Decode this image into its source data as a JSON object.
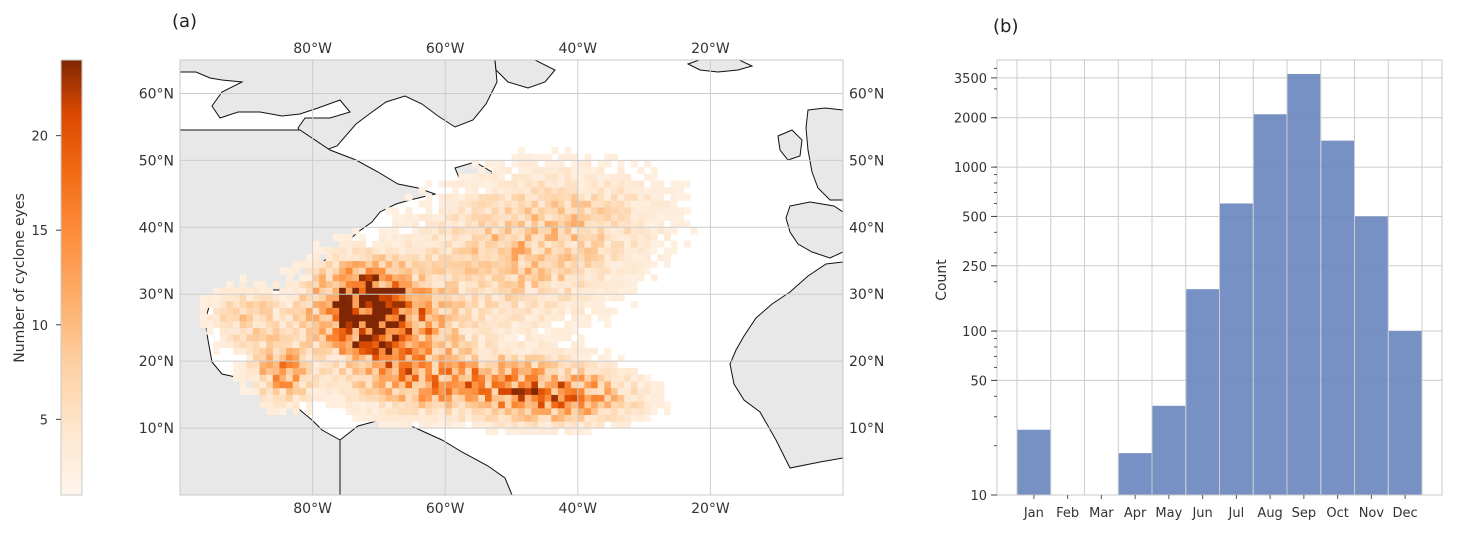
{
  "panels": {
    "a": {
      "label": "(a)"
    },
    "b": {
      "label": "(b)"
    }
  },
  "colorbar": {
    "label": "Number of cyclone eyes",
    "ticks": [
      5,
      10,
      15,
      20
    ],
    "tick_labels": [
      "5",
      "10",
      "15",
      "20"
    ],
    "range": [
      1,
      24
    ],
    "cmap": "Oranges",
    "colors": {
      "low": "#fff5eb",
      "mid": "#fd8d3c",
      "high": "#7f2704"
    }
  },
  "chart_data": [
    {
      "type": "heatmap",
      "panel": "(a)",
      "projection": "PlateCarree",
      "extent": {
        "lon": [
          -100,
          0
        ],
        "lat": [
          0,
          65
        ]
      },
      "bin_size_deg": 1,
      "lon_ticks": [
        -80,
        -60,
        -40,
        -20
      ],
      "lon_tick_labels": [
        "80°W",
        "60°W",
        "40°W",
        "20°W"
      ],
      "lat_ticks": [
        10,
        20,
        30,
        40,
        50,
        60
      ],
      "lat_tick_labels": [
        "10°N",
        "20°N",
        "30°N",
        "40°N",
        "50°N",
        "60°N"
      ],
      "grid": true,
      "land_color": "#e8e8e8",
      "colorbar_label": "Number of cyclone eyes",
      "density_centers": [
        {
          "lon": -73,
          "lat": 28,
          "peak": 24,
          "spread_lon": 5,
          "spread_lat": 4
        },
        {
          "lon": -68,
          "lat": 23,
          "peak": 15,
          "spread_lon": 6,
          "spread_lat": 5
        },
        {
          "lon": -55,
          "lat": 16,
          "peak": 14,
          "spread_lon": 10,
          "spread_lat": 3
        },
        {
          "lon": -42,
          "lat": 14,
          "peak": 12,
          "spread_lon": 7,
          "spread_lat": 2.5
        },
        {
          "lon": -85,
          "lat": 18,
          "peak": 13,
          "spread_lon": 3,
          "spread_lat": 3
        },
        {
          "lon": -90,
          "lat": 26,
          "peak": 8,
          "spread_lon": 4,
          "spread_lat": 3
        },
        {
          "lon": -50,
          "lat": 35,
          "peak": 8,
          "spread_lon": 10,
          "spread_lat": 7
        },
        {
          "lon": -38,
          "lat": 42,
          "peak": 4,
          "spread_lon": 9,
          "spread_lat": 5
        }
      ]
    },
    {
      "type": "bar",
      "panel": "(b)",
      "categories": [
        "Jan",
        "Feb",
        "Mar",
        "Apr",
        "May",
        "Jun",
        "Jul",
        "Aug",
        "Sep",
        "Oct",
        "Nov",
        "Dec"
      ],
      "values": [
        25,
        0,
        0,
        18,
        35,
        180,
        600,
        2100,
        3700,
        1450,
        500,
        100
      ],
      "ylabel": "Count",
      "yscale": "log",
      "ylim": [
        10,
        4500
      ],
      "yticks": [
        10,
        50,
        100,
        250,
        500,
        1000,
        2000,
        3500
      ],
      "ytick_labels": [
        "10",
        "50",
        "100",
        "250",
        "500",
        "1000",
        "2000",
        "3500"
      ],
      "grid": true,
      "bar_color": "#6b88c0"
    }
  ]
}
